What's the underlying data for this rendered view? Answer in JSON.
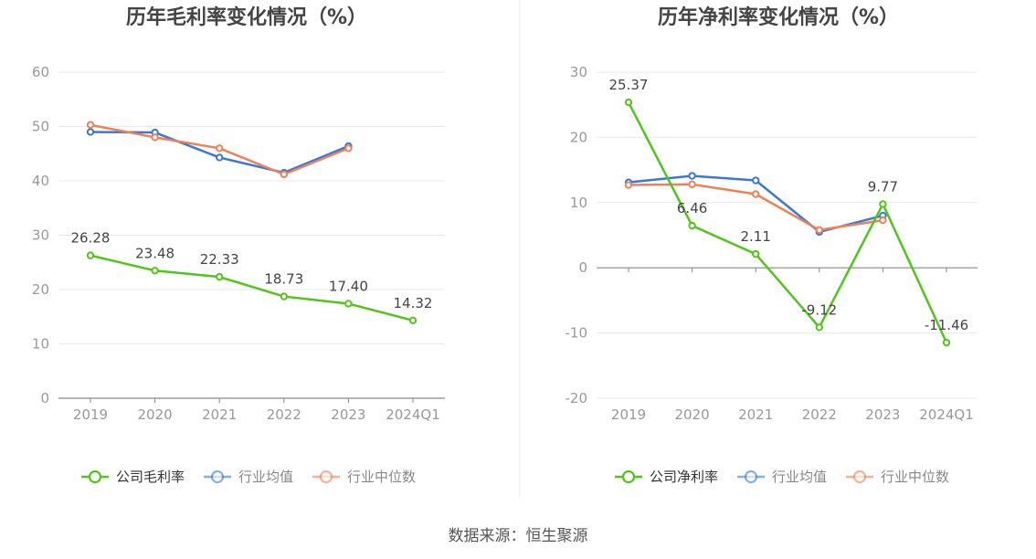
{
  "source_text": "数据来源：恒生聚源",
  "colors": {
    "company": "#52c41a",
    "avg": "#3a77db",
    "median": "#f08057"
  },
  "chart_data": [
    {
      "type": "line",
      "title": "历年毛利率变化情况（%）",
      "categories": [
        "2019",
        "2020",
        "2021",
        "2022",
        "2023",
        "2024Q1"
      ],
      "ylim": [
        0,
        60
      ],
      "yticks": [
        0,
        10,
        20,
        30,
        40,
        50,
        60
      ],
      "series": [
        {
          "name": "公司毛利率",
          "values": [
            26.28,
            23.48,
            22.33,
            18.73,
            17.4,
            14.32
          ],
          "labels": [
            "26.28",
            "23.48",
            "22.33",
            "18.73",
            "17.40",
            "14.32"
          ]
        },
        {
          "name": "行业均值",
          "values": [
            49.0,
            48.9,
            44.3,
            41.5,
            46.4,
            null
          ]
        },
        {
          "name": "行业中位数",
          "values": [
            50.3,
            48.0,
            46.0,
            41.2,
            46.0,
            null
          ]
        }
      ]
    },
    {
      "type": "line",
      "title": "历年净利率变化情况（%）",
      "categories": [
        "2019",
        "2020",
        "2021",
        "2022",
        "2023",
        "2024Q1"
      ],
      "ylim": [
        -20,
        30
      ],
      "yticks": [
        -20,
        -10,
        0,
        10,
        20,
        30
      ],
      "series": [
        {
          "name": "公司净利率",
          "values": [
            25.37,
            6.46,
            2.11,
            -9.12,
            9.77,
            -11.46
          ],
          "labels": [
            "25.37",
            "6.46",
            "2.11",
            "-9.12",
            "9.77",
            "-11.46"
          ]
        },
        {
          "name": "行业均值",
          "values": [
            13.1,
            14.1,
            13.4,
            5.5,
            8.0,
            null
          ]
        },
        {
          "name": "行业中位数",
          "values": [
            12.7,
            12.8,
            11.3,
            5.8,
            7.3,
            null
          ]
        }
      ]
    }
  ]
}
